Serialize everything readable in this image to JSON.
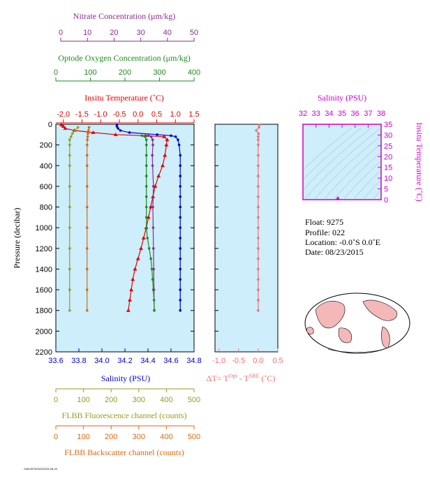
{
  "axes": {
    "nitrate": {
      "title": "Nitrate Concentration (μm/kg)",
      "color": "#8b2c8b",
      "ticks": [
        0,
        10,
        20,
        30,
        40,
        50
      ]
    },
    "oxygen": {
      "title": "Optode Oxygen Concentration (μm/kg)",
      "color": "#1f8a1f",
      "ticks": [
        0,
        100,
        200,
        300,
        400
      ]
    },
    "temperature": {
      "title": "Insitu Temperature (˚C)",
      "color": "#e00000",
      "ticks": [
        "-2.0",
        "-1.5",
        "-1.0",
        "-0.5",
        "0.0",
        "0.5",
        "1.0",
        "1.5"
      ]
    },
    "pressure": {
      "title": "Pressure (decibar)",
      "ticks": [
        0,
        200,
        400,
        600,
        800,
        1000,
        1200,
        1400,
        1600,
        1800,
        2000,
        2200
      ]
    },
    "salinity": {
      "title": "Salinity (PSU)",
      "color": "#0000c8",
      "ticks": [
        "33.6",
        "33.8",
        "34.0",
        "34.2",
        "34.4",
        "34.6",
        "34.8"
      ]
    },
    "fluorescence": {
      "title": "FLBB Fluorescence channel (counts)",
      "color": "#9a9a20",
      "ticks": [
        0,
        100,
        200,
        300,
        400,
        500
      ]
    },
    "backscatter": {
      "title": "FLBB Backscatter channel (counts)",
      "color": "#d86a10",
      "ticks": [
        0,
        100,
        200,
        300,
        400,
        500
      ]
    },
    "delta_t": {
      "title_main": "ΔT= T",
      "title_sup1": "Opt",
      "title_mid": " - T",
      "title_sup2": "SBE",
      "title_end": " (˚C)",
      "color": "#f07070",
      "ticks": [
        "-1.0",
        "-0.5",
        "0.0",
        "0.5"
      ]
    },
    "ts_salinity": {
      "title": "Salinity (PSU)",
      "color": "#cc00cc",
      "ticks": [
        32,
        33,
        34,
        35,
        36,
        37,
        38
      ]
    },
    "ts_temperature": {
      "title": "Insitu Temperature (˚C)",
      "color": "#cc00cc",
      "ticks": [
        0,
        5,
        10,
        15,
        20,
        25,
        30,
        35
      ]
    }
  },
  "float_info": {
    "float": "Float:  9275",
    "profile": "Profile:  022",
    "location": "Location:  -0.0˚S   0.0˚E",
    "date": "Date:  08/23/2015"
  },
  "footer_note": "/VAV/9275/022/2015-08-23",
  "chart_data": {
    "type": "line",
    "ylabel": "Pressure (decibar)",
    "ylim": [
      2200,
      0
    ],
    "series": [
      {
        "name": "Insitu Temperature (˚C)",
        "color": "#e00000",
        "xlim": [
          -2.2,
          1.5
        ],
        "marker": "triangle",
        "pressure": [
          5,
          20,
          40,
          60,
          80,
          100,
          110,
          120,
          150,
          200,
          300,
          400,
          500,
          600,
          700,
          800,
          900,
          1000,
          1100,
          1200,
          1300,
          1400,
          1500,
          1600,
          1700,
          1800
        ],
        "values": [
          -2.05,
          -2.0,
          -1.95,
          -1.7,
          -1.2,
          -0.6,
          0.2,
          0.7,
          0.78,
          0.76,
          0.72,
          0.66,
          0.55,
          0.46,
          0.4,
          0.34,
          0.28,
          0.22,
          0.15,
          0.08,
          0.0,
          -0.08,
          -0.14,
          -0.18,
          -0.22,
          -0.26
        ]
      },
      {
        "name": "Salinity (PSU)",
        "color": "#0000c8",
        "xlim": [
          33.6,
          34.8
        ],
        "marker": "circle",
        "pressure": [
          5,
          20,
          40,
          60,
          80,
          100,
          110,
          120,
          150,
          200,
          300,
          400,
          500,
          600,
          700,
          800,
          900,
          1000,
          1100,
          1200,
          1300,
          1400,
          1500,
          1600,
          1700,
          1800
        ],
        "values": [
          34.13,
          34.13,
          34.14,
          34.16,
          34.24,
          34.48,
          34.6,
          34.64,
          34.66,
          34.67,
          34.68,
          34.68,
          34.68,
          34.68,
          34.68,
          34.68,
          34.68,
          34.68,
          34.68,
          34.68,
          34.68,
          34.68,
          34.68,
          34.68,
          34.68,
          34.68
        ]
      },
      {
        "name": "Nitrate Concentration (μm/kg)",
        "color": "#8b2c8b",
        "xlim": [
          0,
          50
        ],
        "marker": "circle",
        "pressure": [
          110,
          120,
          150,
          200,
          300,
          400,
          600,
          800,
          1000,
          1200,
          1400,
          1600,
          1800
        ],
        "values": [
          33.5,
          34.5,
          35,
          35.1,
          34.9,
          35,
          35.3,
          35.1,
          35.2,
          35.3,
          35.4,
          35.5,
          35.6
        ]
      },
      {
        "name": "Optode Oxygen Concentration (μm/kg)",
        "color": "#1f8a1f",
        "xlim": [
          0,
          400
        ],
        "marker": "circle",
        "pressure": [
          110,
          120,
          150,
          200,
          300,
          400,
          500,
          600,
          700,
          800,
          900,
          1000,
          1100,
          1200,
          1300,
          1400,
          1500,
          1600,
          1700,
          1800
        ],
        "values": [
          249,
          258,
          262,
          262,
          262,
          262,
          262,
          262,
          262,
          262,
          262,
          262,
          265,
          270,
          275,
          278,
          280,
          282,
          284,
          285
        ]
      },
      {
        "name": "FLBB Fluorescence channel (counts)",
        "color": "#9a9a20",
        "xlim": [
          0,
          500
        ],
        "marker": "circle",
        "pressure": [
          30,
          60,
          90,
          120,
          150,
          200,
          300,
          400,
          600,
          800,
          1000,
          1200,
          1400,
          1600,
          1800
        ],
        "values": [
          80,
          70,
          60,
          55,
          50,
          50,
          50,
          50,
          50,
          50,
          50,
          50,
          50,
          50,
          50
        ]
      },
      {
        "name": "FLBB Backscatter channel (counts)",
        "color": "#d86a10",
        "xlim": [
          0,
          500
        ],
        "marker": "circle",
        "pressure": [
          30,
          60,
          90,
          120,
          150,
          200,
          300,
          400,
          600,
          800,
          1000,
          1200,
          1400,
          1600,
          1800
        ],
        "values": [
          120,
          118,
          116,
          115,
          114,
          113,
          113,
          113,
          113,
          113,
          113,
          113,
          113,
          113,
          113
        ]
      },
      {
        "name": "ΔT",
        "color": "#f07070",
        "xlim": [
          -1.1,
          0.5
        ],
        "marker": "circle",
        "pressure": [
          5,
          30,
          60,
          90,
          120,
          150,
          200,
          300,
          400,
          500,
          600,
          700,
          800,
          900,
          1000,
          1100,
          1200,
          1300,
          1400,
          1500,
          1600,
          1700,
          1800
        ],
        "values": [
          0.03,
          0.02,
          -0.05,
          0.01,
          0.0,
          0.0,
          0.0,
          0.0,
          0.0,
          0.0,
          0.0,
          0.0,
          0.0,
          0.0,
          0.0,
          0.0,
          0.0,
          0.0,
          0.0,
          0.0,
          0.0,
          0.0,
          0.0
        ]
      }
    ]
  }
}
